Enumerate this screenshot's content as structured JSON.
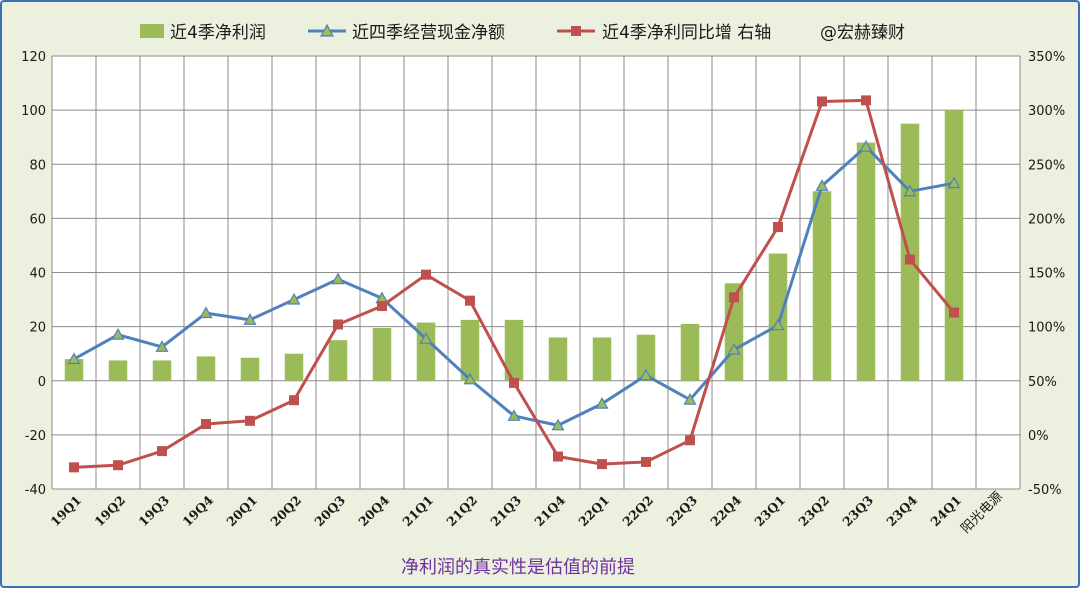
{
  "chart_data": {
    "type": "bar",
    "categories": [
      "19Q1",
      "19Q2",
      "19Q3",
      "19Q4",
      "20Q1",
      "20Q2",
      "20Q3",
      "20Q4",
      "21Q1",
      "21Q2",
      "21Q3",
      "21Q4",
      "22Q1",
      "22Q2",
      "22Q3",
      "22Q4",
      "23Q1",
      "23Q2",
      "23Q3",
      "23Q4",
      "24Q1"
    ],
    "series": [
      {
        "name": "近4季净利润",
        "type": "bar",
        "axis": "left",
        "color": "#9bbb59",
        "values": [
          8,
          7.5,
          7.5,
          9,
          8.5,
          10,
          15,
          19.5,
          21.5,
          22.5,
          22.5,
          16,
          16,
          17,
          21,
          36,
          47,
          70,
          88,
          95,
          100
        ]
      },
      {
        "name": "近四季经营现金净额",
        "type": "line",
        "axis": "left",
        "color": "#4f81bd",
        "marker": "triangle",
        "values": [
          8,
          17,
          12.5,
          25,
          22.5,
          30,
          37.5,
          30.5,
          15.5,
          0.5,
          -13,
          -16.5,
          -8.5,
          2,
          -7,
          11.5,
          20.5,
          72,
          86.5,
          70,
          73
        ]
      },
      {
        "name": "近4季净利同比增 右轴",
        "type": "line",
        "axis": "right",
        "color": "#c0504d",
        "marker": "square",
        "values": [
          -30,
          -28,
          -15,
          10,
          13,
          32,
          102,
          119,
          148,
          124,
          48,
          -20,
          -27,
          -25,
          -5,
          127,
          192,
          308,
          309,
          162,
          113
        ]
      }
    ],
    "yaxis_left": {
      "min": -40,
      "max": 120,
      "step": 20,
      "ticks": [
        "-40",
        "-20",
        "0",
        "20",
        "40",
        "60",
        "80",
        "100",
        "120"
      ]
    },
    "yaxis_right": {
      "min": -50,
      "max": 350,
      "step": 50,
      "ticks": [
        "-50%",
        "0%",
        "50%",
        "100%",
        "150%",
        "200%",
        "250%",
        "300%",
        "350%"
      ]
    },
    "grid": true,
    "legend": {
      "position": "top",
      "extra_text": "@宏赫臻财"
    },
    "annotation": "阳光电源",
    "footer": "净利润的真实性是估值的前提"
  }
}
